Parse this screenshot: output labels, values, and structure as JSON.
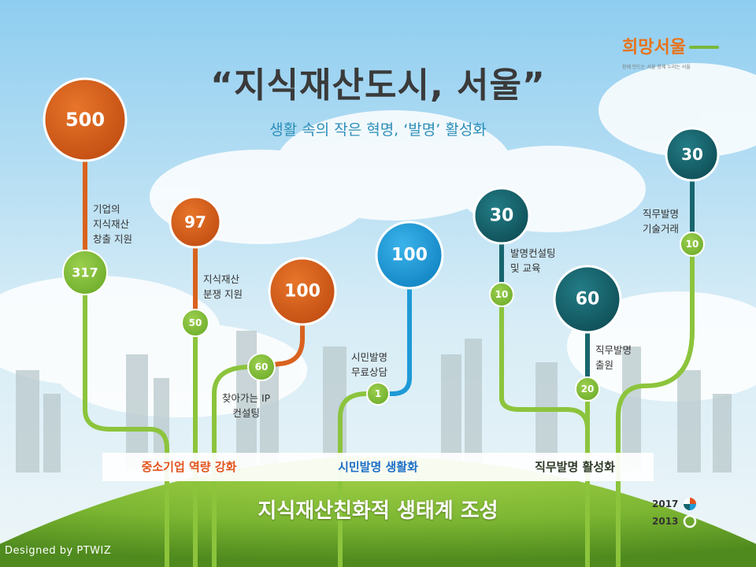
{
  "title": "“지식재산도시, 서울”",
  "subtitle": "생활 속의 작은 혁명, ‘발명’ 활성화",
  "logo": {
    "text": "희망서울",
    "tagline": "함께 만드는 서울 함께 누리는 서울"
  },
  "items": [
    {
      "label": "기업의\n지식재산\n창출 지원",
      "value_2017": "500",
      "value_2013": "317",
      "color": "#d9621e"
    },
    {
      "label": "지식재산\n분쟁 지원",
      "value_2017": "97",
      "value_2013": "50",
      "color": "#d9621e"
    },
    {
      "label": "찾아가는 IP\n컨설팅",
      "value_2017": "100",
      "value_2013": "60",
      "color": "#d9621e"
    },
    {
      "label": "시민발명\n무료상담",
      "value_2017": "100",
      "value_2013": "1",
      "color": "#1e9ad6"
    },
    {
      "label": "발명컨설팅\n및 교육",
      "value_2017": "30",
      "value_2013": "10",
      "color": "#17656e"
    },
    {
      "label": "직무발명\n출원",
      "value_2017": "60",
      "value_2013": "20",
      "color": "#17656e"
    },
    {
      "label": "직무발명\n기술거래",
      "value_2017": "30",
      "value_2013": "10",
      "color": "#17656e"
    }
  ],
  "categories": [
    {
      "label": "중소기업 역량 강화",
      "color": "#e2541e"
    },
    {
      "label": "시민발명 생활화",
      "color": "#1e6fc8"
    },
    {
      "label": "직무발명 활성화",
      "color": "#2f3a28"
    }
  ],
  "bottom_title": "지식재산친화적 생태계 조성",
  "legend": {
    "year_2017": "2017",
    "year_2013": "2013"
  },
  "credit": "Designed by PTWIZ"
}
